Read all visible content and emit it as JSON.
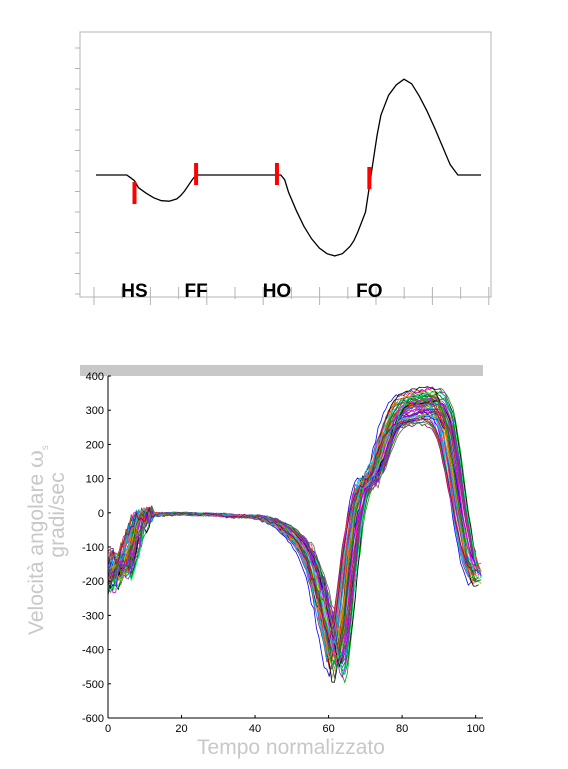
{
  "chart_data": [
    {
      "type": "line",
      "title": "",
      "events": [
        {
          "label": "HS",
          "x": 10
        },
        {
          "label": "FF",
          "x": 26
        },
        {
          "label": "HO",
          "x": 47
        },
        {
          "label": "FO",
          "x": 71
        }
      ],
      "series": [
        {
          "x": [
            0,
            8,
            9,
            10,
            11,
            13,
            15,
            17,
            19,
            21,
            22,
            23,
            24,
            25,
            26,
            30,
            35,
            40,
            45,
            48,
            49,
            50,
            52,
            54,
            56,
            58,
            60,
            62,
            64,
            66,
            67,
            68,
            70,
            71,
            72,
            73,
            74,
            76,
            78,
            80,
            82,
            84,
            86,
            88,
            90,
            92,
            94,
            96,
            97,
            98,
            100
          ],
          "values": [
            0,
            0,
            -5,
            -10,
            -22,
            -32,
            -40,
            -45,
            -46,
            -42,
            -36,
            -28,
            -18,
            -8,
            0,
            0,
            0,
            0,
            0,
            0,
            -8,
            -30,
            -62,
            -90,
            -112,
            -128,
            -138,
            -142,
            -138,
            -125,
            -115,
            -100,
            -65,
            -20,
            25,
            70,
            105,
            140,
            158,
            168,
            160,
            138,
            112,
            82,
            50,
            18,
            0,
            0,
            0,
            0,
            0
          ]
        }
      ]
    },
    {
      "type": "line",
      "title": "",
      "xlabel": "Tempo normalizzato",
      "ylabel": "Velocità angolare ω_s gradi/sec",
      "ylabel_main": "Velocità angolare",
      "ylabel_symbol": "ω",
      "ylabel_sub": "s",
      "ylabel_unit": "gradi/sec",
      "xlim": [
        0,
        102
      ],
      "ylim": [
        -600,
        400
      ],
      "xticks": [
        0,
        20,
        40,
        60,
        80,
        100
      ],
      "yticks": [
        -600,
        -500,
        -400,
        -300,
        -200,
        -100,
        0,
        100,
        200,
        300,
        400
      ],
      "grid": false,
      "header_bar_color": "#c8c8c8",
      "series_colors": [
        "#0000ff",
        "#00a000",
        "#ff0000",
        "#00bfbf",
        "#bf00bf",
        "#bfbf00",
        "#000000",
        "#ff7f00",
        "#7f00ff",
        "#007f7f",
        "#7f7f00",
        "#ff00ff",
        "#00ff7f",
        "#4040ff",
        "#a52a2a",
        "#008000",
        "#ff4040",
        "#00c0ff",
        "#800080",
        "#606060"
      ],
      "mean_curve": {
        "x": [
          0,
          1,
          2,
          3,
          4,
          5,
          6,
          7,
          8,
          9,
          10,
          12,
          14,
          16,
          18,
          20,
          25,
          30,
          35,
          40,
          42,
          44,
          46,
          48,
          50,
          52,
          54,
          56,
          58,
          60,
          61,
          62,
          63,
          64,
          65,
          66,
          67,
          68,
          69,
          70,
          72,
          74,
          76,
          78,
          80,
          82,
          84,
          86,
          88,
          90,
          92,
          94,
          96,
          98,
          100
        ],
        "values": [
          -190,
          -175,
          -155,
          -140,
          -160,
          -150,
          -110,
          -80,
          -40,
          -20,
          -10,
          -5,
          -2,
          -5,
          -3,
          -2,
          -5,
          -5,
          -10,
          -10,
          -15,
          -20,
          -30,
          -40,
          -60,
          -80,
          -110,
          -160,
          -240,
          -330,
          -380,
          -420,
          -395,
          -310,
          -220,
          -120,
          -40,
          20,
          60,
          80,
          100,
          150,
          220,
          270,
          295,
          300,
          305,
          310,
          310,
          300,
          250,
          130,
          -10,
          -120,
          -180
        ]
      },
      "curve_count": 60
    }
  ]
}
